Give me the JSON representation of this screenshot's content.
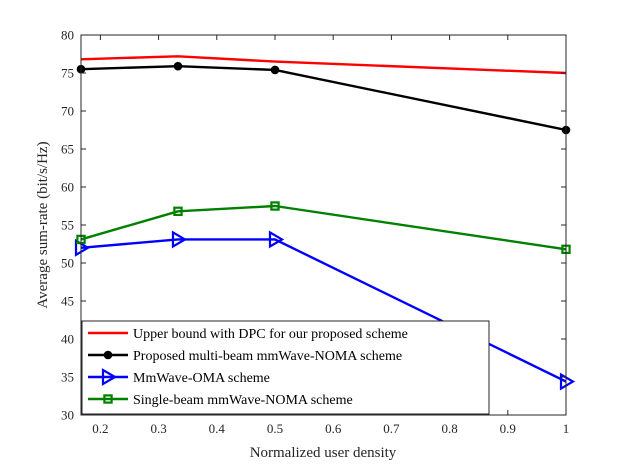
{
  "chart_data": {
    "type": "line",
    "xlabel": "Normalized user density",
    "ylabel": "Average sum-rate (bit/s/Hz)",
    "xlim": [
      0.1667,
      1.0
    ],
    "ylim": [
      30,
      80
    ],
    "xticks": [
      0.2,
      0.3,
      0.4,
      0.5,
      0.6,
      0.7,
      0.8,
      0.9,
      1.0
    ],
    "xtick_labels": [
      "0.2",
      "0.3",
      "0.4",
      "0.5",
      "0.6",
      "0.7",
      "0.8",
      "0.9",
      "1"
    ],
    "yticks": [
      30,
      35,
      40,
      45,
      50,
      55,
      60,
      65,
      70,
      75,
      80
    ],
    "ytick_labels": [
      "30",
      "35",
      "40",
      "45",
      "50",
      "55",
      "60",
      "65",
      "70",
      "75",
      "80"
    ],
    "grid": false,
    "legend_position": "bottom-left",
    "x": [
      0.1667,
      0.3333,
      0.5,
      1.0
    ],
    "series": [
      {
        "name": "Upper bound with DPC for our proposed scheme",
        "values": [
          76.8,
          77.2,
          76.5,
          75.0
        ],
        "color": "#ff0000",
        "marker": "none"
      },
      {
        "name": "Proposed multi-beam mmWave-NOMA scheme",
        "values": [
          75.5,
          75.9,
          75.4,
          67.5
        ],
        "color": "#000000",
        "marker": "circle"
      },
      {
        "name": "MmWave-OMA scheme",
        "values": [
          52.0,
          53.1,
          53.1,
          34.4
        ],
        "color": "#0000ff",
        "marker": "triangle-right"
      },
      {
        "name": "Single-beam mmWave-NOMA scheme",
        "values": [
          53.1,
          56.8,
          57.5,
          51.8
        ],
        "color": "#008000",
        "marker": "square"
      }
    ]
  }
}
